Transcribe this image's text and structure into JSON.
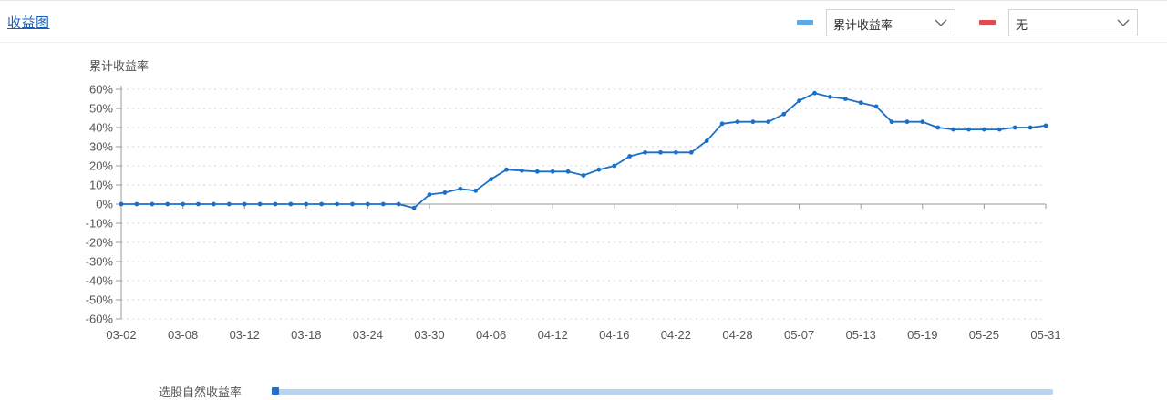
{
  "header": {
    "title": "收益图",
    "selector1": {
      "value": "累计收益率",
      "color": "#5aa9e6"
    },
    "selector2": {
      "value": "无",
      "color": "#e04c4c"
    }
  },
  "bottom": {
    "label": "选股自然收益率"
  },
  "chart_data": {
    "type": "line",
    "ylabel": "累计收益率",
    "xlabel": "",
    "ylim": [
      -60,
      60
    ],
    "yticks": [
      "60%",
      "50%",
      "40%",
      "30%",
      "20%",
      "10%",
      "0%",
      "-10%",
      "-20%",
      "-30%",
      "-40%",
      "-50%",
      "-60%"
    ],
    "xtick_labels": [
      "03-02",
      "03-08",
      "03-12",
      "03-18",
      "03-24",
      "03-30",
      "04-06",
      "04-12",
      "04-16",
      "04-22",
      "04-28",
      "05-07",
      "05-13",
      "05-19",
      "05-25",
      "05-31"
    ],
    "grid": true,
    "line_color": "#1a6fc9",
    "series": [
      {
        "name": "",
        "values": [
          0,
          0,
          0,
          0,
          0,
          0,
          0,
          0,
          0,
          0,
          0,
          0,
          0,
          0,
          0,
          0,
          0,
          0,
          0,
          -2,
          5,
          6,
          8,
          7,
          13,
          18,
          17.5,
          17,
          17,
          17,
          15,
          18,
          20,
          25,
          27,
          27,
          27,
          27,
          33,
          42,
          43,
          43,
          43,
          47,
          54,
          58,
          56,
          55,
          53,
          51,
          43,
          43,
          43,
          40,
          39,
          39,
          39,
          39,
          40,
          40,
          41
        ]
      }
    ]
  }
}
